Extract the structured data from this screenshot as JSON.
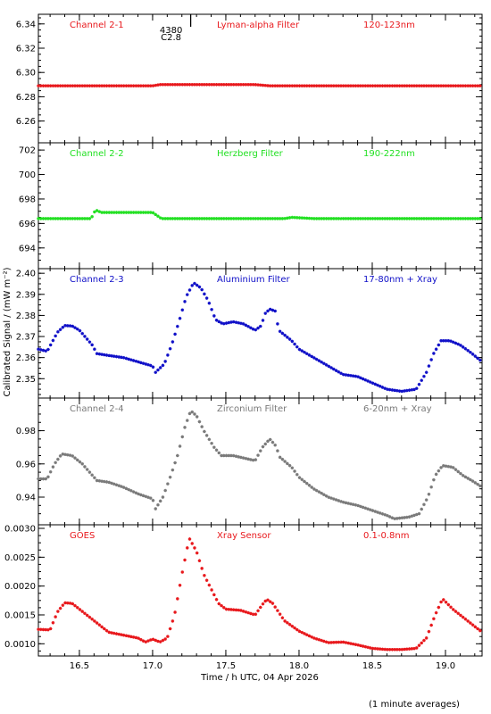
{
  "chart_data": {
    "type": "scatter",
    "ylabel": "Calibrated Signal / (mW m⁻²)",
    "xlabel": "Time / h UTC, 04 Apr 2026",
    "footnote": "(1 minute averages)",
    "xlim": [
      16.22,
      19.25
    ],
    "x_ticks": [
      16.5,
      17.0,
      17.5,
      18.0,
      18.5,
      19.0
    ],
    "x_tick_labels": [
      "16.5",
      "17.0",
      "17.5",
      "18.0",
      "18.5",
      "19.0"
    ],
    "event": {
      "x": 17.26,
      "label_top": "4380",
      "label_bottom": "C2.8"
    },
    "panels": [
      {
        "channel": "Channel 2-1",
        "filter": "Lyman-alpha Filter",
        "band": "120-123nm",
        "color": "#e8181c",
        "ylim": [
          6.245,
          6.345
        ],
        "ticks": [
          6.26,
          6.28,
          6.3,
          6.32,
          6.34
        ],
        "tick_labels": [
          "6.26",
          "6.28",
          "6.30",
          "6.32",
          "6.34"
        ],
        "points": [
          [
            16.22,
            6.289
          ],
          [
            17.0,
            6.289
          ],
          [
            17.05,
            6.29
          ],
          [
            17.7,
            6.29
          ],
          [
            17.8,
            6.289
          ],
          [
            19.25,
            6.289
          ]
        ]
      },
      {
        "channel": "Channel 2-2",
        "filter": "Herzberg Filter",
        "band": "190-222nm",
        "color": "#22e022",
        "ylim": [
          692.6,
          702.3
        ],
        "ticks": [
          694,
          696,
          698,
          700,
          702
        ],
        "tick_labels": [
          "694",
          "696",
          "698",
          "700",
          "702"
        ],
        "points": [
          [
            16.22,
            696.4
          ],
          [
            16.58,
            696.4
          ],
          [
            16.61,
            697.1
          ],
          [
            16.65,
            696.9
          ],
          [
            17.0,
            696.9
          ],
          [
            17.06,
            696.4
          ],
          [
            17.9,
            696.4
          ],
          [
            17.95,
            696.5
          ],
          [
            18.1,
            696.4
          ],
          [
            19.25,
            696.4
          ]
        ]
      },
      {
        "channel": "Channel 2-3",
        "filter": "Aluminium Filter",
        "band": "17-80nm + Xray",
        "color": "#1010c8",
        "ylim": [
          2.3425,
          2.4005
        ],
        "ticks": [
          2.35,
          2.36,
          2.37,
          2.38,
          2.39,
          2.4
        ],
        "tick_labels": [
          "2.35",
          "2.36",
          "2.37",
          "2.38",
          "2.39",
          "2.40"
        ],
        "points": [
          [
            16.22,
            2.364
          ],
          [
            16.28,
            2.363
          ],
          [
            16.35,
            2.372
          ],
          [
            16.4,
            2.3752
          ],
          [
            16.45,
            2.375
          ],
          [
            16.5,
            2.373
          ],
          [
            16.55,
            2.369
          ],
          [
            16.6,
            2.365
          ],
          [
            16.61,
            2.362
          ],
          [
            16.7,
            2.361
          ],
          [
            16.8,
            2.36
          ],
          [
            16.9,
            2.358
          ],
          [
            17.0,
            2.356
          ],
          [
            17.02,
            2.353
          ],
          [
            17.08,
            2.357
          ],
          [
            17.13,
            2.366
          ],
          [
            17.18,
            2.377
          ],
          [
            17.23,
            2.389
          ],
          [
            17.28,
            2.3955
          ],
          [
            17.33,
            2.393
          ],
          [
            17.38,
            2.387
          ],
          [
            17.43,
            2.378
          ],
          [
            17.48,
            2.376
          ],
          [
            17.55,
            2.377
          ],
          [
            17.62,
            2.376
          ],
          [
            17.7,
            2.373
          ],
          [
            17.74,
            2.375
          ],
          [
            17.77,
            2.381
          ],
          [
            17.8,
            2.383
          ],
          [
            17.84,
            2.382
          ],
          [
            17.86,
            2.373
          ],
          [
            17.95,
            2.368
          ],
          [
            18.0,
            2.364
          ],
          [
            18.1,
            2.36
          ],
          [
            18.2,
            2.356
          ],
          [
            18.3,
            2.352
          ],
          [
            18.4,
            2.351
          ],
          [
            18.5,
            2.348
          ],
          [
            18.6,
            2.345
          ],
          [
            18.7,
            2.344
          ],
          [
            18.8,
            2.345
          ],
          [
            18.87,
            2.353
          ],
          [
            18.92,
            2.362
          ],
          [
            18.97,
            2.368
          ],
          [
            19.03,
            2.368
          ],
          [
            19.1,
            2.366
          ],
          [
            19.18,
            2.362
          ],
          [
            19.25,
            2.358
          ]
        ]
      },
      {
        "channel": "Channel 2-4",
        "filter": "Zirconium Filter",
        "band": "6-20nm + Xray",
        "color": "#7a7a7a",
        "ylim": [
          0.9255,
          0.9975
        ],
        "ticks": [
          0.94,
          0.96,
          0.98
        ],
        "tick_labels": [
          "0.94",
          "0.96",
          "0.98"
        ],
        "points": [
          [
            16.22,
            0.951
          ],
          [
            16.28,
            0.951
          ],
          [
            16.33,
            0.96
          ],
          [
            16.38,
            0.966
          ],
          [
            16.45,
            0.965
          ],
          [
            16.52,
            0.96
          ],
          [
            16.58,
            0.954
          ],
          [
            16.62,
            0.95
          ],
          [
            16.7,
            0.949
          ],
          [
            16.8,
            0.946
          ],
          [
            16.9,
            0.942
          ],
          [
            17.0,
            0.939
          ],
          [
            17.02,
            0.933
          ],
          [
            17.07,
            0.94
          ],
          [
            17.12,
            0.952
          ],
          [
            17.17,
            0.965
          ],
          [
            17.22,
            0.982
          ],
          [
            17.26,
            0.992
          ],
          [
            17.3,
            0.989
          ],
          [
            17.35,
            0.98
          ],
          [
            17.42,
            0.97
          ],
          [
            17.47,
            0.965
          ],
          [
            17.55,
            0.965
          ],
          [
            17.65,
            0.963
          ],
          [
            17.7,
            0.962
          ],
          [
            17.75,
            0.97
          ],
          [
            17.8,
            0.975
          ],
          [
            17.84,
            0.971
          ],
          [
            17.87,
            0.964
          ],
          [
            17.95,
            0.958
          ],
          [
            18.0,
            0.952
          ],
          [
            18.1,
            0.945
          ],
          [
            18.2,
            0.94
          ],
          [
            18.3,
            0.937
          ],
          [
            18.4,
            0.935
          ],
          [
            18.5,
            0.932
          ],
          [
            18.6,
            0.929
          ],
          [
            18.65,
            0.927
          ],
          [
            18.75,
            0.928
          ],
          [
            18.82,
            0.93
          ],
          [
            18.88,
            0.94
          ],
          [
            18.93,
            0.953
          ],
          [
            18.98,
            0.959
          ],
          [
            19.05,
            0.958
          ],
          [
            19.12,
            0.953
          ],
          [
            19.18,
            0.95
          ],
          [
            19.25,
            0.946
          ]
        ]
      },
      {
        "channel": "GOES",
        "filter": "Xray Sensor",
        "band": "0.1-0.8nm",
        "color": "#e8181c",
        "ylim": [
          0.00085,
          0.003
        ],
        "ticks": [
          0.001,
          0.0015,
          0.002,
          0.0025,
          0.003
        ],
        "tick_labels": [
          "0.0010",
          "0.0015",
          "0.0020",
          "0.0025",
          "0.0030"
        ],
        "points": [
          [
            16.22,
            0.00125
          ],
          [
            16.3,
            0.00124
          ],
          [
            16.35,
            0.00155
          ],
          [
            16.4,
            0.00171
          ],
          [
            16.45,
            0.0017
          ],
          [
            16.55,
            0.0015
          ],
          [
            16.6,
            0.0014
          ],
          [
            16.7,
            0.0012
          ],
          [
            16.8,
            0.00115
          ],
          [
            16.9,
            0.0011
          ],
          [
            16.95,
            0.00103
          ],
          [
            17.0,
            0.00108
          ],
          [
            17.05,
            0.00103
          ],
          [
            17.1,
            0.0011
          ],
          [
            17.15,
            0.0015
          ],
          [
            17.2,
            0.0022
          ],
          [
            17.25,
            0.00283
          ],
          [
            17.3,
            0.0026
          ],
          [
            17.35,
            0.0022
          ],
          [
            17.4,
            0.00195
          ],
          [
            17.45,
            0.0017
          ],
          [
            17.5,
            0.0016
          ],
          [
            17.6,
            0.00158
          ],
          [
            17.7,
            0.0015
          ],
          [
            17.75,
            0.00168
          ],
          [
            17.78,
            0.00177
          ],
          [
            17.82,
            0.0017
          ],
          [
            17.9,
            0.0014
          ],
          [
            18.0,
            0.00122
          ],
          [
            18.1,
            0.0011
          ],
          [
            18.2,
            0.00102
          ],
          [
            18.3,
            0.00103
          ],
          [
            18.4,
            0.00098
          ],
          [
            18.5,
            0.00092
          ],
          [
            18.6,
            0.0009
          ],
          [
            18.7,
            0.0009
          ],
          [
            18.8,
            0.00092
          ],
          [
            18.87,
            0.0011
          ],
          [
            18.93,
            0.0015
          ],
          [
            18.98,
            0.00178
          ],
          [
            19.05,
            0.0016
          ],
          [
            19.15,
            0.0014
          ],
          [
            19.25,
            0.0012
          ]
        ]
      }
    ]
  }
}
